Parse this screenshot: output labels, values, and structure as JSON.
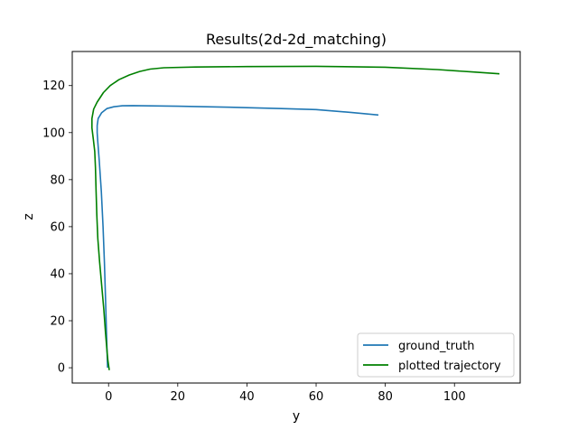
{
  "chart_data": {
    "type": "line",
    "title": "Results(2d-2d_matching)",
    "xlabel": "y",
    "ylabel": "z",
    "xlim": [
      -10.5,
      119
    ],
    "ylim": [
      -6.5,
      134.5
    ],
    "xticks": [
      0,
      20,
      40,
      60,
      80,
      100
    ],
    "yticks": [
      0,
      20,
      40,
      60,
      80,
      100,
      120
    ],
    "grid": false,
    "legend_position": "lower right",
    "series": [
      {
        "name": "ground_truth",
        "color": "#1f77b4",
        "points": [
          [
            -0.3,
            0
          ],
          [
            -0.4,
            5
          ],
          [
            -0.6,
            15
          ],
          [
            -0.9,
            30
          ],
          [
            -1.2,
            45
          ],
          [
            -1.6,
            60
          ],
          [
            -2.1,
            75
          ],
          [
            -2.7,
            88
          ],
          [
            -3.1,
            96
          ],
          [
            -3.3,
            100
          ],
          [
            -3.3,
            103
          ],
          [
            -3.0,
            106
          ],
          [
            -2.0,
            108.5
          ],
          [
            -0.5,
            110.2
          ],
          [
            1.5,
            111.0
          ],
          [
            4.0,
            111.4
          ],
          [
            7.0,
            111.5
          ],
          [
            20,
            111.2
          ],
          [
            35,
            110.8
          ],
          [
            50,
            110.2
          ],
          [
            60,
            109.8
          ],
          [
            70,
            108.6
          ],
          [
            78,
            107.5
          ]
        ]
      },
      {
        "name": "plotted trajectory",
        "color": "#008000",
        "points": [
          [
            0.2,
            -1
          ],
          [
            -0.2,
            3
          ],
          [
            -0.5,
            8
          ],
          [
            -0.9,
            15
          ],
          [
            -1.4,
            25
          ],
          [
            -2.0,
            35
          ],
          [
            -2.6,
            45
          ],
          [
            -3.1,
            55
          ],
          [
            -3.4,
            65
          ],
          [
            -3.6,
            75
          ],
          [
            -3.8,
            85
          ],
          [
            -4.0,
            92
          ],
          [
            -4.4,
            97
          ],
          [
            -4.8,
            102
          ],
          [
            -4.8,
            106
          ],
          [
            -4.3,
            110
          ],
          [
            -3.3,
            113
          ],
          [
            -1.5,
            117
          ],
          [
            0.5,
            120
          ],
          [
            3.0,
            122.5
          ],
          [
            6.0,
            124.5
          ],
          [
            9.0,
            126
          ],
          [
            12.0,
            127
          ],
          [
            16,
            127.6
          ],
          [
            25,
            127.9
          ],
          [
            40,
            128.1
          ],
          [
            60,
            128.2
          ],
          [
            80,
            127.8
          ],
          [
            95,
            126.8
          ],
          [
            105,
            125.8
          ],
          [
            113,
            125
          ]
        ]
      }
    ]
  }
}
